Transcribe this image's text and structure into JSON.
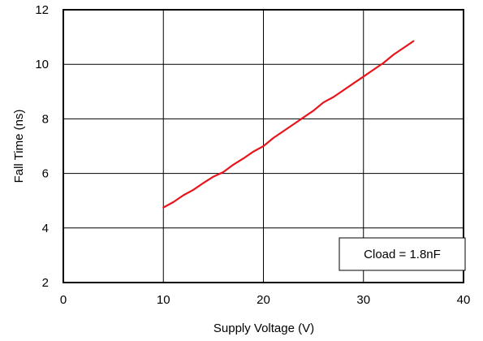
{
  "chart_data": {
    "type": "line",
    "title": "",
    "xlabel": "Supply Voltage (V)",
    "ylabel": "Fall Time (ns)",
    "xlim": [
      0,
      40
    ],
    "ylim": [
      2,
      12
    ],
    "xticks": [
      "0",
      "10",
      "20",
      "30",
      "40"
    ],
    "yticks": [
      "2",
      "4",
      "6",
      "8",
      "10",
      "12"
    ],
    "grid": true,
    "legend": "none",
    "annotation": "Cload = 1.8nF",
    "series": [
      {
        "color": "#e8141b",
        "x": [
          10,
          11,
          12,
          13,
          14,
          15,
          16,
          17,
          18,
          19,
          20,
          21,
          22,
          23,
          24,
          25,
          26,
          27,
          28,
          29,
          30,
          31,
          32,
          33,
          34,
          35
        ],
        "y": [
          4.75,
          4.95,
          5.2,
          5.4,
          5.65,
          5.88,
          6.05,
          6.32,
          6.55,
          6.8,
          7.0,
          7.3,
          7.55,
          7.8,
          8.05,
          8.3,
          8.6,
          8.8,
          9.05,
          9.3,
          9.55,
          9.8,
          10.05,
          10.35,
          10.6,
          10.85
        ]
      }
    ]
  }
}
